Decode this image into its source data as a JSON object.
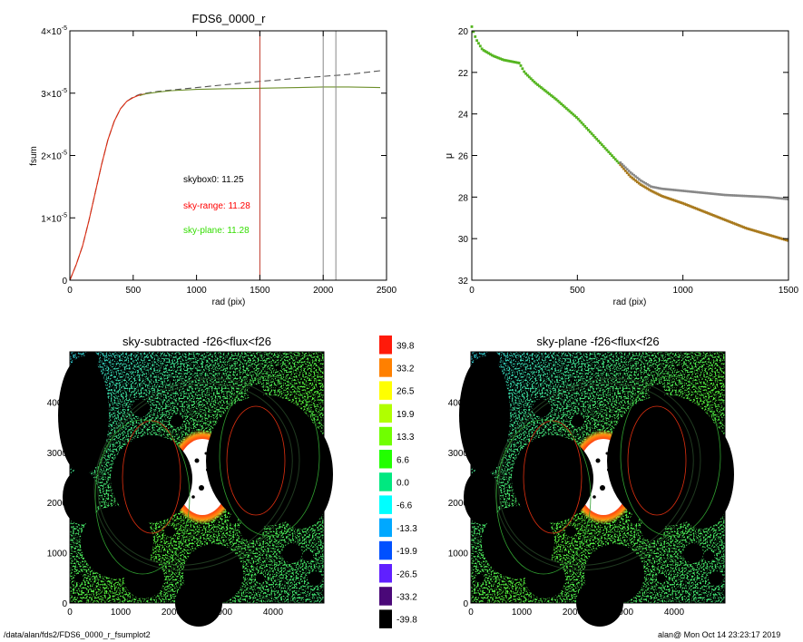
{
  "chart_data": [
    {
      "type": "line",
      "title": "FDS6_0000_r",
      "xlabel": "rad (pix)",
      "ylabel": "fsum",
      "xlim": [
        0,
        2500
      ],
      "ylim": [
        0,
        4e-05
      ],
      "x_ticks": [
        "0",
        "500",
        "1000",
        "1500",
        "2000",
        "2500"
      ],
      "y_ticks": [
        {
          "base": "0",
          "exp": ""
        },
        {
          "base": "1×10",
          "exp": "-5"
        },
        {
          "base": "2×10",
          "exp": "-5"
        },
        {
          "base": "3×10",
          "exp": "-5"
        },
        {
          "base": "4×10",
          "exp": "-5"
        }
      ],
      "series": [
        {
          "style": "dashed",
          "color": "#555555",
          "x": [
            0,
            50,
            100,
            150,
            200,
            250,
            300,
            350,
            400,
            450,
            500,
            550,
            600,
            700,
            800,
            1000,
            1200,
            1500,
            1800,
            2000,
            2200,
            2450
          ],
          "y": [
            0,
            2.5e-06,
            5.5e-06,
            9.5e-06,
            1.4e-05,
            1.85e-05,
            2.25e-05,
            2.55e-05,
            2.75e-05,
            2.87e-05,
            2.94e-05,
            2.98e-05,
            3e-05,
            3.03e-05,
            3.05e-05,
            3.09e-05,
            3.13e-05,
            3.19e-05,
            3.24e-05,
            3.27e-05,
            3.3e-05,
            3.36e-05
          ]
        },
        {
          "style": "solid",
          "color": "#dd2a10",
          "x": [
            0,
            50,
            100,
            150,
            200,
            250,
            300,
            350,
            400,
            450,
            500,
            550,
            600
          ],
          "y": [
            0,
            2.5e-06,
            5.5e-06,
            9.5e-06,
            1.4e-05,
            1.85e-05,
            2.25e-05,
            2.55e-05,
            2.75e-05,
            2.87e-05,
            2.93e-05,
            2.97e-05,
            2.99e-05
          ]
        },
        {
          "style": "solid",
          "color": "#6d8f2a",
          "x": [
            550,
            600,
            700,
            800,
            1000,
            1200,
            1500,
            1800,
            2000,
            2200,
            2450
          ],
          "y": [
            2.96e-05,
            2.99e-05,
            3.02e-05,
            3.04e-05,
            3.06e-05,
            3.07e-05,
            3.08e-05,
            3.09e-05,
            3.1e-05,
            3.1e-05,
            3.09e-05
          ]
        }
      ],
      "vlines": [
        {
          "x": 1500,
          "color": "#c0392b"
        },
        {
          "x": 2000,
          "color": "#888888"
        },
        {
          "x": 2100,
          "color": "#888888"
        }
      ],
      "annotations": [
        {
          "label": "skybox0:",
          "value": "11.25",
          "color": "#000000"
        },
        {
          "label": "sky-range:",
          "value": "11.28",
          "color": "#ff0000"
        },
        {
          "label": "sky-plane:",
          "value": "11.28",
          "color": "#33dd00"
        }
      ]
    },
    {
      "type": "scatter",
      "title": "",
      "xlabel": "rad (pix)",
      "ylabel": "μ",
      "xlim": [
        0,
        1500
      ],
      "ylim": [
        32,
        20
      ],
      "x_ticks": [
        "0",
        "500",
        "1000",
        "1500"
      ],
      "y_ticks": [
        "20",
        "22",
        "24",
        "26",
        "28",
        "30",
        "32"
      ],
      "series": [
        {
          "color": "#888888",
          "x": [
            0,
            20,
            50,
            100,
            150,
            200,
            225,
            250,
            300,
            400,
            500,
            600,
            700,
            750,
            800,
            850,
            900,
            1000,
            1100,
            1200,
            1300,
            1400,
            1500
          ],
          "y": [
            19.8,
            20.4,
            20.9,
            21.2,
            21.4,
            21.5,
            21.55,
            22.0,
            22.5,
            23.3,
            24.2,
            25.3,
            26.3,
            26.8,
            27.2,
            27.5,
            27.6,
            27.7,
            27.8,
            27.9,
            27.95,
            28.0,
            28.1
          ]
        },
        {
          "color": "#a97a1e",
          "x": [
            0,
            20,
            50,
            100,
            150,
            200,
            225,
            250,
            300,
            400,
            500,
            600,
            700,
            750,
            800,
            850,
            900,
            1000,
            1100,
            1200,
            1300,
            1400,
            1500
          ],
          "y": [
            19.8,
            20.4,
            20.9,
            21.2,
            21.4,
            21.5,
            21.55,
            22.0,
            22.5,
            23.3,
            24.2,
            25.3,
            26.4,
            27.0,
            27.4,
            27.7,
            27.95,
            28.3,
            28.7,
            29.1,
            29.5,
            29.8,
            30.1
          ]
        }
      ]
    },
    {
      "type": "heatmap",
      "title": "sky-subtracted -f26<flux<f26",
      "xlim": [
        0,
        5000
      ],
      "ylim": [
        0,
        5000
      ],
      "x_ticks": [
        "0",
        "1000",
        "2000",
        "3000",
        "4000"
      ],
      "y_ticks": [
        "0",
        "1000",
        "2000",
        "3000",
        "4000"
      ]
    },
    {
      "type": "heatmap",
      "title": "sky-plane -f26<flux<f26",
      "xlim": [
        0,
        5000
      ],
      "ylim": [
        0,
        5000
      ],
      "x_ticks": [
        "0",
        "1000",
        "2000",
        "3000",
        "4000"
      ],
      "y_ticks": [
        "0",
        "1000",
        "2000",
        "3000",
        "4000"
      ]
    }
  ],
  "colorbar": {
    "labels": [
      "39.8",
      "33.2",
      "26.5",
      "19.9",
      "13.3",
      "6.6",
      "0.0",
      "-6.6",
      "-13.3",
      "-19.9",
      "-26.5",
      "-33.2",
      "-39.8"
    ],
    "colors": [
      "#ff1a0a",
      "#ff8000",
      "#ffff00",
      "#b0ff00",
      "#70ff00",
      "#22ff00",
      "#00e880",
      "#00ffff",
      "#00a8ff",
      "#0050ff",
      "#6020ff",
      "#4a0878",
      "#000000"
    ]
  },
  "footer": {
    "left": "/data/alan/fds2/FDS6_0000_r_fsumplot2",
    "right": "alan@  Mon Oct 14 23:23:17 2019"
  }
}
